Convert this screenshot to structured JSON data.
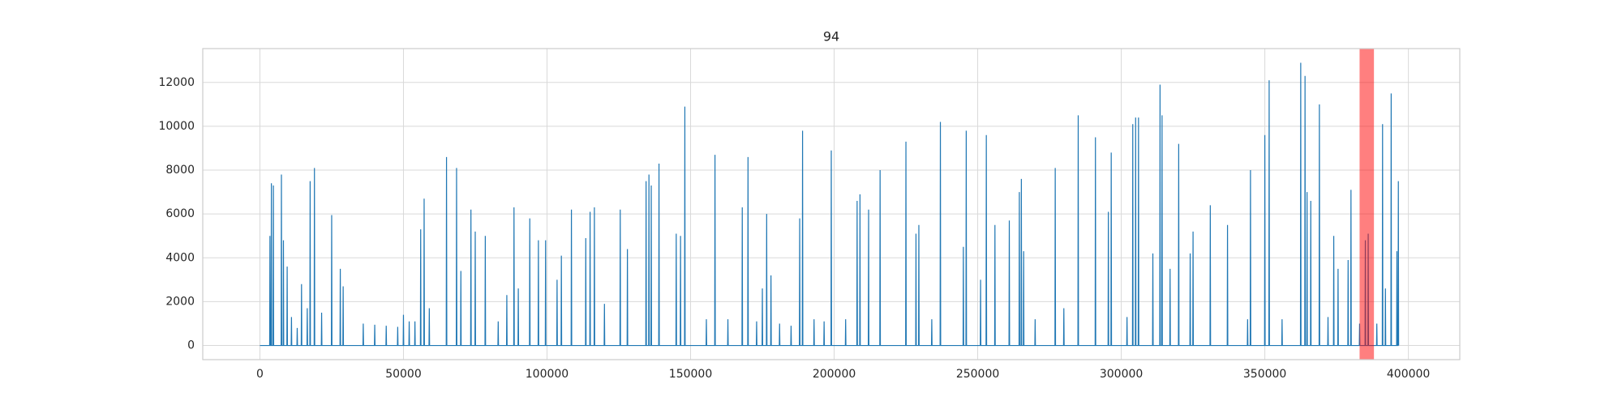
{
  "chart_data": {
    "type": "line",
    "title": "94",
    "color": "#1f77b4",
    "grid": true,
    "xlim": [
      -19900,
      417900
    ],
    "ylim": [
      -645,
      13545
    ],
    "xticks": [
      0,
      50000,
      100000,
      150000,
      200000,
      250000,
      300000,
      350000,
      400000
    ],
    "yticks": [
      0,
      2000,
      4000,
      6000,
      8000,
      10000,
      12000
    ],
    "highlight": {
      "xmin": 383000,
      "xmax": 388000,
      "color": "#ff0000",
      "alpha": 0.5
    },
    "x": [
      0,
      3400,
      3500,
      3600,
      3900,
      4000,
      4100,
      4600,
      4700,
      4800,
      7400,
      7500,
      7600,
      8100,
      8200,
      8300,
      9400,
      9500,
      9600,
      10900,
      11000,
      11100,
      12900,
      13000,
      13100,
      14400,
      14500,
      14600,
      16400,
      16500,
      16600,
      17400,
      17500,
      17600,
      18900,
      19000,
      19100,
      21400,
      21500,
      21600,
      24900,
      25000,
      25100,
      27900,
      28000,
      28100,
      28900,
      29000,
      29100,
      35900,
      36000,
      36100,
      39900,
      40000,
      40100,
      43900,
      44000,
      44100,
      47900,
      48000,
      48100,
      49900,
      50000,
      50100,
      51900,
      52000,
      52100,
      53900,
      54000,
      54100,
      55900,
      56000,
      56100,
      57100,
      57200,
      57300,
      58900,
      59000,
      59100,
      64900,
      65000,
      65100,
      68400,
      68500,
      68600,
      69900,
      70000,
      70100,
      73400,
      73500,
      73600,
      74900,
      75000,
      75100,
      78400,
      78500,
      78600,
      82900,
      83000,
      83100,
      85900,
      86000,
      86100,
      88400,
      88500,
      88600,
      89900,
      90000,
      90100,
      93900,
      94000,
      94100,
      96900,
      97000,
      97100,
      99400,
      99500,
      99600,
      103400,
      103500,
      103600,
      104900,
      105000,
      105100,
      108400,
      108500,
      108600,
      113400,
      113500,
      113600,
      114900,
      115000,
      115100,
      116400,
      116500,
      116600,
      119900,
      120000,
      120100,
      125400,
      125500,
      125600,
      127900,
      128000,
      128100,
      134400,
      134500,
      134600,
      135400,
      135500,
      135600,
      136200,
      136300,
      136400,
      138900,
      139000,
      139100,
      144900,
      145000,
      145100,
      146400,
      146500,
      146600,
      147900,
      148000,
      148100,
      155400,
      155500,
      155600,
      158400,
      158500,
      158600,
      162900,
      163000,
      163100,
      167900,
      168000,
      168100,
      169900,
      170000,
      170100,
      172900,
      173000,
      173100,
      174900,
      175000,
      175100,
      176400,
      176500,
      176600,
      177900,
      178000,
      178100,
      180900,
      181000,
      181100,
      184900,
      185000,
      185100,
      187900,
      188000,
      188100,
      188900,
      189000,
      189100,
      192900,
      193000,
      193100,
      196400,
      196500,
      196600,
      198900,
      199000,
      199100,
      203900,
      204000,
      204100,
      207900,
      208000,
      208100,
      208900,
      209000,
      209100,
      211900,
      212000,
      212100,
      215900,
      216000,
      216100,
      224900,
      225000,
      225100,
      228400,
      228500,
      228600,
      229400,
      229500,
      229600,
      233900,
      234000,
      234100,
      236900,
      237000,
      237100,
      244900,
      245000,
      245100,
      245900,
      246000,
      246100,
      250900,
      251000,
      251100,
      252900,
      253000,
      253100,
      255900,
      256000,
      256100,
      260900,
      261000,
      261100,
      264400,
      264500,
      264600,
      265100,
      265200,
      265300,
      265900,
      266000,
      266100,
      269900,
      270000,
      270100,
      276900,
      277000,
      277100,
      279900,
      280000,
      280100,
      284900,
      285000,
      285100,
      290900,
      291000,
      291100,
      295400,
      295500,
      295600,
      296400,
      296500,
      296600,
      301900,
      302000,
      302100,
      303900,
      304000,
      304100,
      304900,
      305000,
      305100,
      305900,
      306000,
      306100,
      310900,
      311000,
      311100,
      313400,
      313500,
      313600,
      314100,
      314200,
      314300,
      316900,
      317000,
      317100,
      319900,
      320000,
      320100,
      323900,
      324000,
      324100,
      324900,
      325000,
      325100,
      330900,
      331000,
      331100,
      336900,
      337000,
      337100,
      343900,
      344000,
      344100,
      344900,
      345000,
      345100,
      349900,
      350000,
      350100,
      351400,
      351500,
      351600,
      355900,
      356000,
      356100,
      362400,
      362500,
      362600,
      363900,
      364000,
      364100,
      364600,
      364700,
      364800,
      365900,
      366000,
      366100,
      368900,
      369000,
      369100,
      371900,
      372000,
      372100,
      373900,
      374000,
      374100,
      375400,
      375500,
      375600,
      378900,
      379000,
      379100,
      379900,
      380000,
      380100,
      382900,
      383000,
      383100,
      384900,
      385000,
      385100,
      385900,
      386000,
      386100,
      388900,
      389000,
      389100,
      390900,
      391000,
      391100,
      391900,
      392000,
      392100,
      393900,
      394000,
      394100,
      395900,
      396000,
      396100,
      396400,
      396500,
      396600
    ],
    "values": [
      0,
      0,
      5000,
      0,
      0,
      7400,
      0,
      0,
      7300,
      0,
      0,
      7800,
      0,
      0,
      4800,
      0,
      0,
      3600,
      0,
      0,
      1300,
      0,
      0,
      800,
      0,
      0,
      2800,
      0,
      0,
      1700,
      0,
      0,
      7500,
      0,
      0,
      8100,
      0,
      0,
      1500,
      0,
      0,
      5950,
      0,
      0,
      3500,
      0,
      0,
      2700,
      0,
      0,
      1000,
      0,
      0,
      950,
      0,
      0,
      900,
      0,
      0,
      850,
      0,
      0,
      1400,
      0,
      0,
      1100,
      0,
      0,
      1100,
      0,
      0,
      5300,
      0,
      0,
      6700,
      0,
      0,
      1700,
      0,
      0,
      8600,
      0,
      0,
      8100,
      0,
      0,
      3400,
      0,
      0,
      6200,
      0,
      0,
      5200,
      0,
      0,
      5000,
      0,
      0,
      1100,
      0,
      0,
      2300,
      0,
      0,
      6300,
      0,
      0,
      2600,
      0,
      0,
      5800,
      0,
      0,
      4800,
      0,
      0,
      4800,
      0,
      0,
      3000,
      0,
      0,
      4100,
      0,
      0,
      6200,
      0,
      0,
      4900,
      0,
      0,
      6100,
      0,
      0,
      6300,
      0,
      0,
      1900,
      0,
      0,
      6200,
      0,
      0,
      4400,
      0,
      0,
      7500,
      0,
      0,
      7800,
      0,
      0,
      7300,
      0,
      0,
      8300,
      0,
      0,
      5100,
      0,
      0,
      5000,
      0,
      0,
      10900,
      0,
      0,
      1200,
      0,
      0,
      8700,
      0,
      0,
      1200,
      0,
      0,
      6300,
      0,
      0,
      8600,
      0,
      0,
      1100,
      0,
      0,
      2600,
      0,
      0,
      6000,
      0,
      0,
      3200,
      0,
      0,
      1000,
      0,
      0,
      900,
      0,
      0,
      5800,
      0,
      0,
      9800,
      0,
      0,
      1200,
      0,
      0,
      1100,
      0,
      0,
      8900,
      0,
      0,
      1200,
      0,
      0,
      6600,
      0,
      0,
      6900,
      0,
      0,
      6200,
      0,
      0,
      8000,
      0,
      0,
      9300,
      0,
      0,
      5100,
      0,
      0,
      5500,
      0,
      0,
      1200,
      0,
      0,
      10200,
      0,
      0,
      4500,
      0,
      0,
      9800,
      0,
      0,
      3000,
      0,
      0,
      9600,
      0,
      0,
      5500,
      0,
      0,
      5700,
      0,
      0,
      7000,
      0,
      0,
      7600,
      0,
      0,
      4300,
      0,
      0,
      1200,
      0,
      0,
      8100,
      0,
      0,
      1700,
      0,
      0,
      10500,
      0,
      0,
      9500,
      0,
      0,
      6100,
      0,
      0,
      8800,
      0,
      0,
      1300,
      0,
      0,
      10100,
      0,
      0,
      10400,
      0,
      0,
      10400,
      0,
      0,
      4200,
      0,
      0,
      11900,
      0,
      0,
      10500,
      0,
      0,
      3500,
      0,
      0,
      9200,
      0,
      0,
      4200,
      0,
      0,
      5200,
      0,
      0,
      6400,
      0,
      0,
      5500,
      0,
      0,
      1200,
      0,
      0,
      8000,
      0,
      0,
      9600,
      0,
      0,
      12100,
      0,
      0,
      1200,
      0,
      0,
      12900,
      0,
      0,
      12300,
      0,
      0,
      7000,
      0,
      0,
      6600,
      0,
      0,
      11000,
      0,
      0,
      1300,
      0,
      0,
      5000,
      0,
      0,
      3500,
      0,
      0,
      3900,
      0,
      0,
      7100,
      0,
      0,
      1000,
      0,
      0,
      4800,
      0,
      0,
      5100,
      0,
      0,
      1000,
      0,
      0,
      10100,
      0,
      0,
      2600,
      0,
      0,
      11500,
      0,
      0,
      4300,
      0,
      0,
      7500,
      0
    ]
  }
}
